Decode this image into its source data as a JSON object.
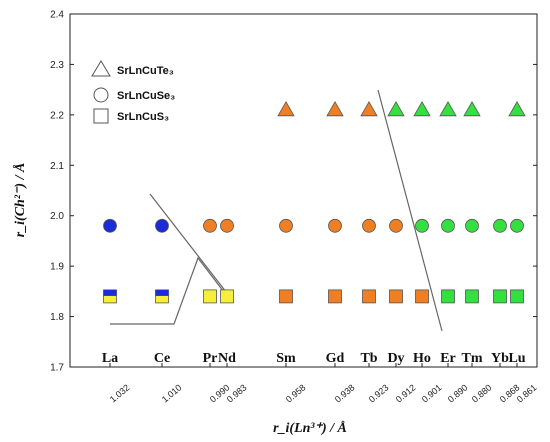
{
  "chart_data": {
    "type": "scatter",
    "ylim": [
      1.7,
      2.4
    ],
    "y_ticks": [
      "1.7",
      "1.8",
      "1.9",
      "2.0",
      "2.1",
      "2.2",
      "2.3",
      "2.4"
    ],
    "elements": [
      {
        "symbol": "La",
        "radius": "1.032"
      },
      {
        "symbol": "Ce",
        "radius": "1.010"
      },
      {
        "symbol": "Pr",
        "radius": "0.990"
      },
      {
        "symbol": "Nd",
        "radius": "0.983"
      },
      {
        "symbol": "Sm",
        "radius": "0.958"
      },
      {
        "symbol": "Gd",
        "radius": "0.938"
      },
      {
        "symbol": "Tb",
        "radius": "0.923"
      },
      {
        "symbol": "Dy",
        "radius": "0.912"
      },
      {
        "symbol": "Ho",
        "radius": "0.901"
      },
      {
        "symbol": "Er",
        "radius": "0.890"
      },
      {
        "symbol": "Tm",
        "radius": "0.880"
      },
      {
        "symbol": "Yb",
        "radius": "0.868"
      },
      {
        "symbol": "Lu",
        "radius": "0.861"
      }
    ],
    "ylabel": "r_i(Ch²⁻) / Å",
    "xlabel": "r_i(Ln³⁺) / Å",
    "legend": {
      "placement": "top-left",
      "entries": [
        {
          "marker": "triangle",
          "label": "SrLnCuTe₃"
        },
        {
          "marker": "circle",
          "label": "SrLnCuSe₃"
        },
        {
          "marker": "square",
          "label": "SrLnCuS₃"
        }
      ]
    },
    "series": [
      {
        "marker": "triangle",
        "value": 2.21,
        "points": [
          {
            "element": "Sm",
            "color": "#f07f24"
          },
          {
            "element": "Gd",
            "color": "#f07f24"
          },
          {
            "element": "Tb",
            "color": "#f07f24"
          },
          {
            "element": "Dy",
            "color": "#33e040"
          },
          {
            "element": "Ho",
            "color": "#33e040"
          },
          {
            "element": "Er",
            "color": "#33e040"
          },
          {
            "element": "Tm",
            "color": "#33e040"
          },
          {
            "element": "Lu",
            "color": "#33e040"
          }
        ]
      },
      {
        "marker": "circle",
        "value": 1.98,
        "points": [
          {
            "element": "La",
            "color": "#1a2bd9"
          },
          {
            "element": "Ce",
            "color": "#1a2bd9"
          },
          {
            "element": "Pr",
            "color": "#f07f24"
          },
          {
            "element": "Nd",
            "color": "#f07f24"
          },
          {
            "element": "Sm",
            "color": "#f07f24"
          },
          {
            "element": "Gd",
            "color": "#f07f24"
          },
          {
            "element": "Tb",
            "color": "#f07f24"
          },
          {
            "element": "Dy",
            "color": "#f07f24"
          },
          {
            "element": "Ho",
            "color": "#33e040"
          },
          {
            "element": "Er",
            "color": "#33e040"
          },
          {
            "element": "Tm",
            "color": "#33e040"
          },
          {
            "element": "Yb",
            "color": "#33e040"
          },
          {
            "element": "Lu",
            "color": "#33e040"
          }
        ]
      },
      {
        "marker": "square",
        "value": 1.84,
        "points": [
          {
            "element": "La",
            "color": "#f5ef3a",
            "top_color": "#1a2bd9"
          },
          {
            "element": "Ce",
            "color": "#f5ef3a",
            "top_color": "#1a2bd9"
          },
          {
            "element": "Pr",
            "color": "#f5ef3a"
          },
          {
            "element": "Nd",
            "color": "#f5ef3a"
          },
          {
            "element": "Sm",
            "color": "#f07f24"
          },
          {
            "element": "Gd",
            "color": "#f07f24"
          },
          {
            "element": "Tb",
            "color": "#f07f24"
          },
          {
            "element": "Dy",
            "color": "#f07f24"
          },
          {
            "element": "Ho",
            "color": "#f07f24"
          },
          {
            "element": "Er",
            "color": "#33e040"
          },
          {
            "element": "Tm",
            "color": "#33e040"
          },
          {
            "element": "Yb",
            "color": "#33e040"
          },
          {
            "element": "Lu",
            "color": "#33e040"
          }
        ]
      }
    ]
  }
}
